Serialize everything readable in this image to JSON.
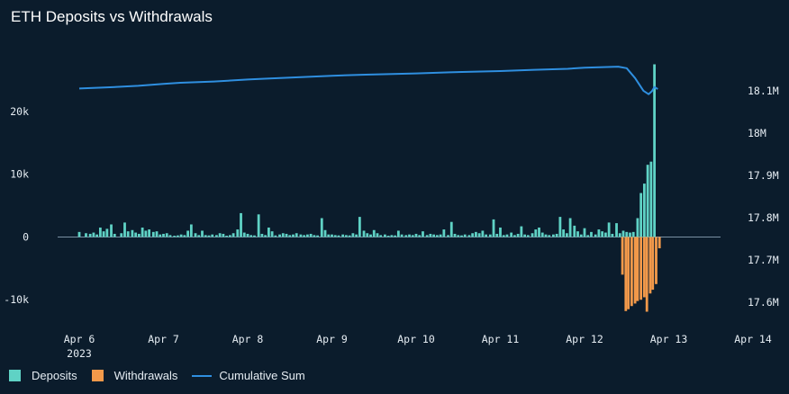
{
  "chart_data": {
    "type": "bar+line",
    "title": "ETH Deposits vs Withdrawals",
    "colors": {
      "deposits": "#5fd2c5",
      "withdrawals": "#f2994a",
      "cumulative": "#2f8fe0",
      "background": "#0b1c2c"
    },
    "x_ticks": [
      {
        "label": "Apr 6",
        "sub": "2023",
        "day": 6
      },
      {
        "label": "Apr 7",
        "sub": "",
        "day": 7
      },
      {
        "label": "Apr 8",
        "sub": "",
        "day": 8
      },
      {
        "label": "Apr 9",
        "sub": "",
        "day": 9
      },
      {
        "label": "Apr 10",
        "sub": "",
        "day": 10
      },
      {
        "label": "Apr 11",
        "sub": "",
        "day": 11
      },
      {
        "label": "Apr 12",
        "sub": "",
        "day": 12
      },
      {
        "label": "Apr 13",
        "sub": "",
        "day": 13
      },
      {
        "label": "Apr 14",
        "sub": "",
        "day": 14
      }
    ],
    "y_left": {
      "ticks": [
        {
          "v": 20000,
          "label": "20k"
        },
        {
          "v": 10000,
          "label": "10k"
        },
        {
          "v": 0,
          "label": "0"
        },
        {
          "v": -10000,
          "label": "-10k"
        }
      ],
      "range": [
        -12400,
        28000
      ]
    },
    "y_right": {
      "ticks": [
        {
          "v": 18100000,
          "label": "18.1M"
        },
        {
          "v": 18000000,
          "label": "18M"
        },
        {
          "v": 17900000,
          "label": "17.9M"
        },
        {
          "v": 17800000,
          "label": "17.8M"
        },
        {
          "v": 17700000,
          "label": "17.7M"
        },
        {
          "v": 17600000,
          "label": "17.6M"
        }
      ],
      "range": [
        17570000,
        18170000
      ]
    },
    "x_range": [
      5.9,
      14.1
    ],
    "deposits": [
      [
        6.0,
        800
      ],
      [
        6.08,
        600
      ],
      [
        6.13,
        500
      ],
      [
        6.17,
        700
      ],
      [
        6.21,
        400
      ],
      [
        6.25,
        1500
      ],
      [
        6.29,
        900
      ],
      [
        6.33,
        1300
      ],
      [
        6.38,
        2000
      ],
      [
        6.42,
        500
      ],
      [
        6.5,
        600
      ],
      [
        6.54,
        2300
      ],
      [
        6.58,
        900
      ],
      [
        6.63,
        1100
      ],
      [
        6.67,
        700
      ],
      [
        6.71,
        500
      ],
      [
        6.75,
        1500
      ],
      [
        6.79,
        1000
      ],
      [
        6.83,
        1200
      ],
      [
        6.88,
        800
      ],
      [
        6.92,
        900
      ],
      [
        6.96,
        400
      ],
      [
        7.0,
        500
      ],
      [
        7.04,
        600
      ],
      [
        7.08,
        300
      ],
      [
        7.13,
        200
      ],
      [
        7.17,
        250
      ],
      [
        7.21,
        400
      ],
      [
        7.25,
        300
      ],
      [
        7.29,
        1000
      ],
      [
        7.33,
        2000
      ],
      [
        7.38,
        600
      ],
      [
        7.42,
        300
      ],
      [
        7.46,
        1000
      ],
      [
        7.5,
        300
      ],
      [
        7.54,
        250
      ],
      [
        7.58,
        400
      ],
      [
        7.63,
        300
      ],
      [
        7.67,
        600
      ],
      [
        7.71,
        500
      ],
      [
        7.75,
        200
      ],
      [
        7.79,
        300
      ],
      [
        7.83,
        600
      ],
      [
        7.88,
        1200
      ],
      [
        7.92,
        3800
      ],
      [
        7.96,
        700
      ],
      [
        8.0,
        500
      ],
      [
        8.04,
        300
      ],
      [
        8.08,
        250
      ],
      [
        8.13,
        3600
      ],
      [
        8.17,
        500
      ],
      [
        8.21,
        300
      ],
      [
        8.25,
        1500
      ],
      [
        8.29,
        900
      ],
      [
        8.33,
        250
      ],
      [
        8.38,
        400
      ],
      [
        8.42,
        600
      ],
      [
        8.46,
        500
      ],
      [
        8.5,
        300
      ],
      [
        8.54,
        400
      ],
      [
        8.58,
        600
      ],
      [
        8.63,
        400
      ],
      [
        8.67,
        300
      ],
      [
        8.71,
        400
      ],
      [
        8.75,
        500
      ],
      [
        8.79,
        300
      ],
      [
        8.83,
        250
      ],
      [
        8.88,
        3000
      ],
      [
        8.92,
        1100
      ],
      [
        8.96,
        400
      ],
      [
        9.0,
        400
      ],
      [
        9.04,
        300
      ],
      [
        9.08,
        250
      ],
      [
        9.13,
        400
      ],
      [
        9.17,
        300
      ],
      [
        9.21,
        250
      ],
      [
        9.25,
        600
      ],
      [
        9.29,
        400
      ],
      [
        9.33,
        3200
      ],
      [
        9.38,
        1000
      ],
      [
        9.42,
        600
      ],
      [
        9.46,
        400
      ],
      [
        9.5,
        1100
      ],
      [
        9.54,
        600
      ],
      [
        9.58,
        300
      ],
      [
        9.63,
        400
      ],
      [
        9.67,
        200
      ],
      [
        9.71,
        300
      ],
      [
        9.75,
        250
      ],
      [
        9.79,
        1000
      ],
      [
        9.83,
        400
      ],
      [
        9.88,
        300
      ],
      [
        9.92,
        400
      ],
      [
        9.96,
        300
      ],
      [
        10.0,
        500
      ],
      [
        10.04,
        300
      ],
      [
        10.08,
        900
      ],
      [
        10.13,
        300
      ],
      [
        10.17,
        500
      ],
      [
        10.21,
        400
      ],
      [
        10.25,
        300
      ],
      [
        10.29,
        400
      ],
      [
        10.33,
        1200
      ],
      [
        10.38,
        300
      ],
      [
        10.42,
        2400
      ],
      [
        10.46,
        500
      ],
      [
        10.5,
        300
      ],
      [
        10.54,
        250
      ],
      [
        10.58,
        400
      ],
      [
        10.63,
        300
      ],
      [
        10.67,
        600
      ],
      [
        10.71,
        800
      ],
      [
        10.75,
        600
      ],
      [
        10.79,
        1000
      ],
      [
        10.83,
        400
      ],
      [
        10.88,
        400
      ],
      [
        10.92,
        2800
      ],
      [
        10.96,
        500
      ],
      [
        11.0,
        1500
      ],
      [
        11.04,
        300
      ],
      [
        11.08,
        400
      ],
      [
        11.13,
        700
      ],
      [
        11.17,
        300
      ],
      [
        11.21,
        500
      ],
      [
        11.25,
        1700
      ],
      [
        11.29,
        400
      ],
      [
        11.33,
        300
      ],
      [
        11.38,
        600
      ],
      [
        11.42,
        1200
      ],
      [
        11.46,
        1500
      ],
      [
        11.5,
        700
      ],
      [
        11.54,
        400
      ],
      [
        11.58,
        300
      ],
      [
        11.63,
        400
      ],
      [
        11.67,
        500
      ],
      [
        11.71,
        3200
      ],
      [
        11.75,
        1200
      ],
      [
        11.79,
        600
      ],
      [
        11.83,
        3000
      ],
      [
        11.88,
        1800
      ],
      [
        11.92,
        900
      ],
      [
        11.96,
        400
      ],
      [
        12.0,
        1400
      ],
      [
        12.04,
        300
      ],
      [
        12.08,
        800
      ],
      [
        12.13,
        400
      ],
      [
        12.17,
        1200
      ],
      [
        12.21,
        900
      ],
      [
        12.25,
        700
      ],
      [
        12.29,
        2300
      ],
      [
        12.33,
        500
      ],
      [
        12.38,
        2200
      ],
      [
        12.42,
        600
      ],
      [
        12.46,
        1000
      ],
      [
        12.5,
        800
      ],
      [
        12.54,
        700
      ],
      [
        12.58,
        800
      ],
      [
        12.63,
        3000
      ],
      [
        12.67,
        7000
      ],
      [
        12.71,
        8500
      ],
      [
        12.75,
        11500
      ],
      [
        12.79,
        12000
      ],
      [
        12.83,
        27500
      ]
    ],
    "withdrawals": [
      [
        12.45,
        -6000
      ],
      [
        12.49,
        -11800
      ],
      [
        12.52,
        -11500
      ],
      [
        12.56,
        -11000
      ],
      [
        12.6,
        -10600
      ],
      [
        12.63,
        -10200
      ],
      [
        12.67,
        -10000
      ],
      [
        12.71,
        -9600
      ],
      [
        12.74,
        -11900
      ],
      [
        12.78,
        -9000
      ],
      [
        12.81,
        -8400
      ],
      [
        12.85,
        -7500
      ],
      [
        12.89,
        -1800
      ]
    ],
    "cumulative": [
      [
        6.0,
        18.1054
      ],
      [
        6.3,
        18.1076
      ],
      [
        6.7,
        18.1118
      ],
      [
        7.0,
        18.1163
      ],
      [
        7.2,
        18.119
      ],
      [
        7.6,
        18.122
      ],
      [
        8.0,
        18.1265
      ],
      [
        8.2,
        18.1285
      ],
      [
        8.6,
        18.132
      ],
      [
        9.0,
        18.1355
      ],
      [
        9.4,
        18.138
      ],
      [
        10.0,
        18.141
      ],
      [
        10.4,
        18.1437
      ],
      [
        11.0,
        18.1465
      ],
      [
        11.4,
        18.1495
      ],
      [
        11.8,
        18.152
      ],
      [
        12.0,
        18.1547
      ],
      [
        12.4,
        18.157
      ],
      [
        12.5,
        18.1535
      ],
      [
        12.6,
        18.13
      ],
      [
        12.7,
        18.1
      ],
      [
        12.76,
        18.092
      ],
      [
        12.8,
        18.099
      ],
      [
        12.83,
        18.109
      ],
      [
        12.87,
        18.104
      ]
    ],
    "legend": [
      {
        "label": "Deposits",
        "key": "deposits"
      },
      {
        "label": "Withdrawals",
        "key": "withdrawals"
      },
      {
        "label": "Cumulative Sum",
        "key": "cumulative"
      }
    ]
  }
}
